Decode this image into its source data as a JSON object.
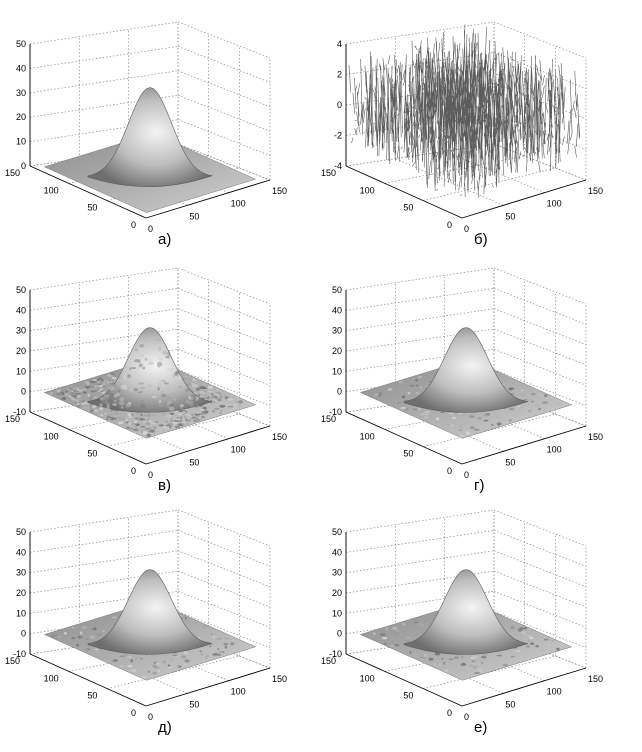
{
  "chart_data": [
    {
      "type": "surface",
      "caption": "а)",
      "surface": "clean",
      "peak": 35,
      "z_range": [
        0,
        50
      ],
      "z_ticks": [
        "0",
        "10",
        "20",
        "30",
        "40",
        "50"
      ],
      "x_ticks": [
        "0",
        "50",
        "100",
        "150"
      ],
      "y_ticks": [
        "0",
        "50",
        "100",
        "150"
      ],
      "grid": true
    },
    {
      "type": "surface",
      "caption": "б)",
      "surface": "noise",
      "peak": 0,
      "z_range": [
        -4,
        4
      ],
      "z_ticks": [
        "-4",
        "-2",
        "0",
        "2",
        "4"
      ],
      "x_ticks": [
        "0",
        "50",
        "100",
        "150"
      ],
      "y_ticks": [
        "0",
        "50",
        "100",
        "150"
      ],
      "grid": true
    },
    {
      "type": "surface",
      "caption": "в)",
      "surface": "noisy",
      "peak": 35,
      "z_range": [
        -10,
        50
      ],
      "z_ticks": [
        "-10",
        "0",
        "10",
        "20",
        "30",
        "40",
        "50"
      ],
      "x_ticks": [
        "0",
        "50",
        "100",
        "150"
      ],
      "y_ticks": [
        "0",
        "50",
        "100",
        "150"
      ],
      "grid": true
    },
    {
      "type": "surface",
      "caption": "г)",
      "surface": "filtered",
      "peak": 35,
      "z_range": [
        -10,
        50
      ],
      "z_ticks": [
        "-10",
        "0",
        "10",
        "20",
        "30",
        "40",
        "50"
      ],
      "x_ticks": [
        "0",
        "50",
        "100",
        "150"
      ],
      "y_ticks": [
        "0",
        "50",
        "100",
        "150"
      ],
      "grid": true
    },
    {
      "type": "surface",
      "caption": "д)",
      "surface": "filtered",
      "peak": 35,
      "z_range": [
        -10,
        50
      ],
      "z_ticks": [
        "-10",
        "0",
        "10",
        "20",
        "30",
        "40",
        "50"
      ],
      "x_ticks": [
        "0",
        "50",
        "100",
        "150"
      ],
      "y_ticks": [
        "0",
        "50",
        "100",
        "150"
      ],
      "grid": true
    },
    {
      "type": "surface",
      "caption": "е)",
      "surface": "filtered",
      "peak": 35,
      "z_range": [
        -10,
        50
      ],
      "z_ticks": [
        "-10",
        "0",
        "10",
        "20",
        "30",
        "40",
        "50"
      ],
      "x_ticks": [
        "0",
        "50",
        "100",
        "150"
      ],
      "y_ticks": [
        "0",
        "50",
        "100",
        "150"
      ],
      "grid": true
    }
  ]
}
